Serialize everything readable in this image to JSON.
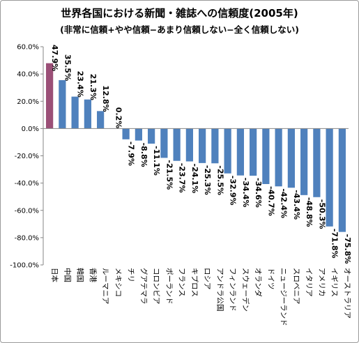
{
  "chart_data": {
    "type": "bar",
    "title": "世界各国における新聞・雑誌への信頼度(2005年)",
    "subtitle": "(非常に信頼+やや信頼−あまり信頼しない−全く信頼しない)",
    "categories": [
      "日本",
      "中国",
      "韓国",
      "香港",
      "ルーマニア",
      "メキシコ",
      "チリ",
      "グアテマラ",
      "コロンビア",
      "ポーランド",
      "フランス",
      "キプロス",
      "ロシア",
      "アンドラ公国",
      "フィンランド",
      "スウェーデン",
      "オランダ",
      "ドイツ",
      "ニュージーランド",
      "スロベニア",
      "イタリア",
      "アメリカ",
      "イギリス",
      "オーストラリア"
    ],
    "values": [
      47.9,
      35.5,
      23.4,
      21.3,
      12.8,
      0.2,
      -7.9,
      -8.8,
      -11.1,
      -21.5,
      -23.7,
      -24.1,
      -25.3,
      -25.5,
      -32.9,
      -34.4,
      -34.6,
      -40.7,
      -42.4,
      -43.4,
      -48.8,
      -50.3,
      -71.8,
      -75.8
    ],
    "data_labels": [
      "47.9%",
      "35.5%",
      "23.4%",
      "21.3%",
      "12.8%",
      "0.2%",
      "-7.9%",
      "-8.8%",
      "-11.1%",
      "-21.5%",
      "-23.7%",
      "-24.1%",
      "-25.3%",
      "-25.5%",
      "-32.9%",
      "-34.4%",
      "-34.6%",
      "-40.7%",
      "-42.4%",
      "-43.4%",
      "-48.8%",
      "-50.3%",
      "-71.8%",
      "-75.8%"
    ],
    "yticks": [
      60,
      40,
      20,
      0,
      -20,
      -40,
      -60,
      -80,
      -100
    ],
    "ytick_labels": [
      "60.0%",
      "40.0%",
      "20.0%",
      "0.0%",
      "-20.0%",
      "-40.0%",
      "-60.0%",
      "-80.0%",
      "-100.0%"
    ],
    "ylim": [
      -100,
      60
    ],
    "grid": false,
    "legend": "none",
    "colors": {
      "bar": "#4f81bd",
      "highlight": "#9b4f77",
      "axis": "#868686",
      "text": "#000000"
    },
    "highlight_category": "日本"
  }
}
